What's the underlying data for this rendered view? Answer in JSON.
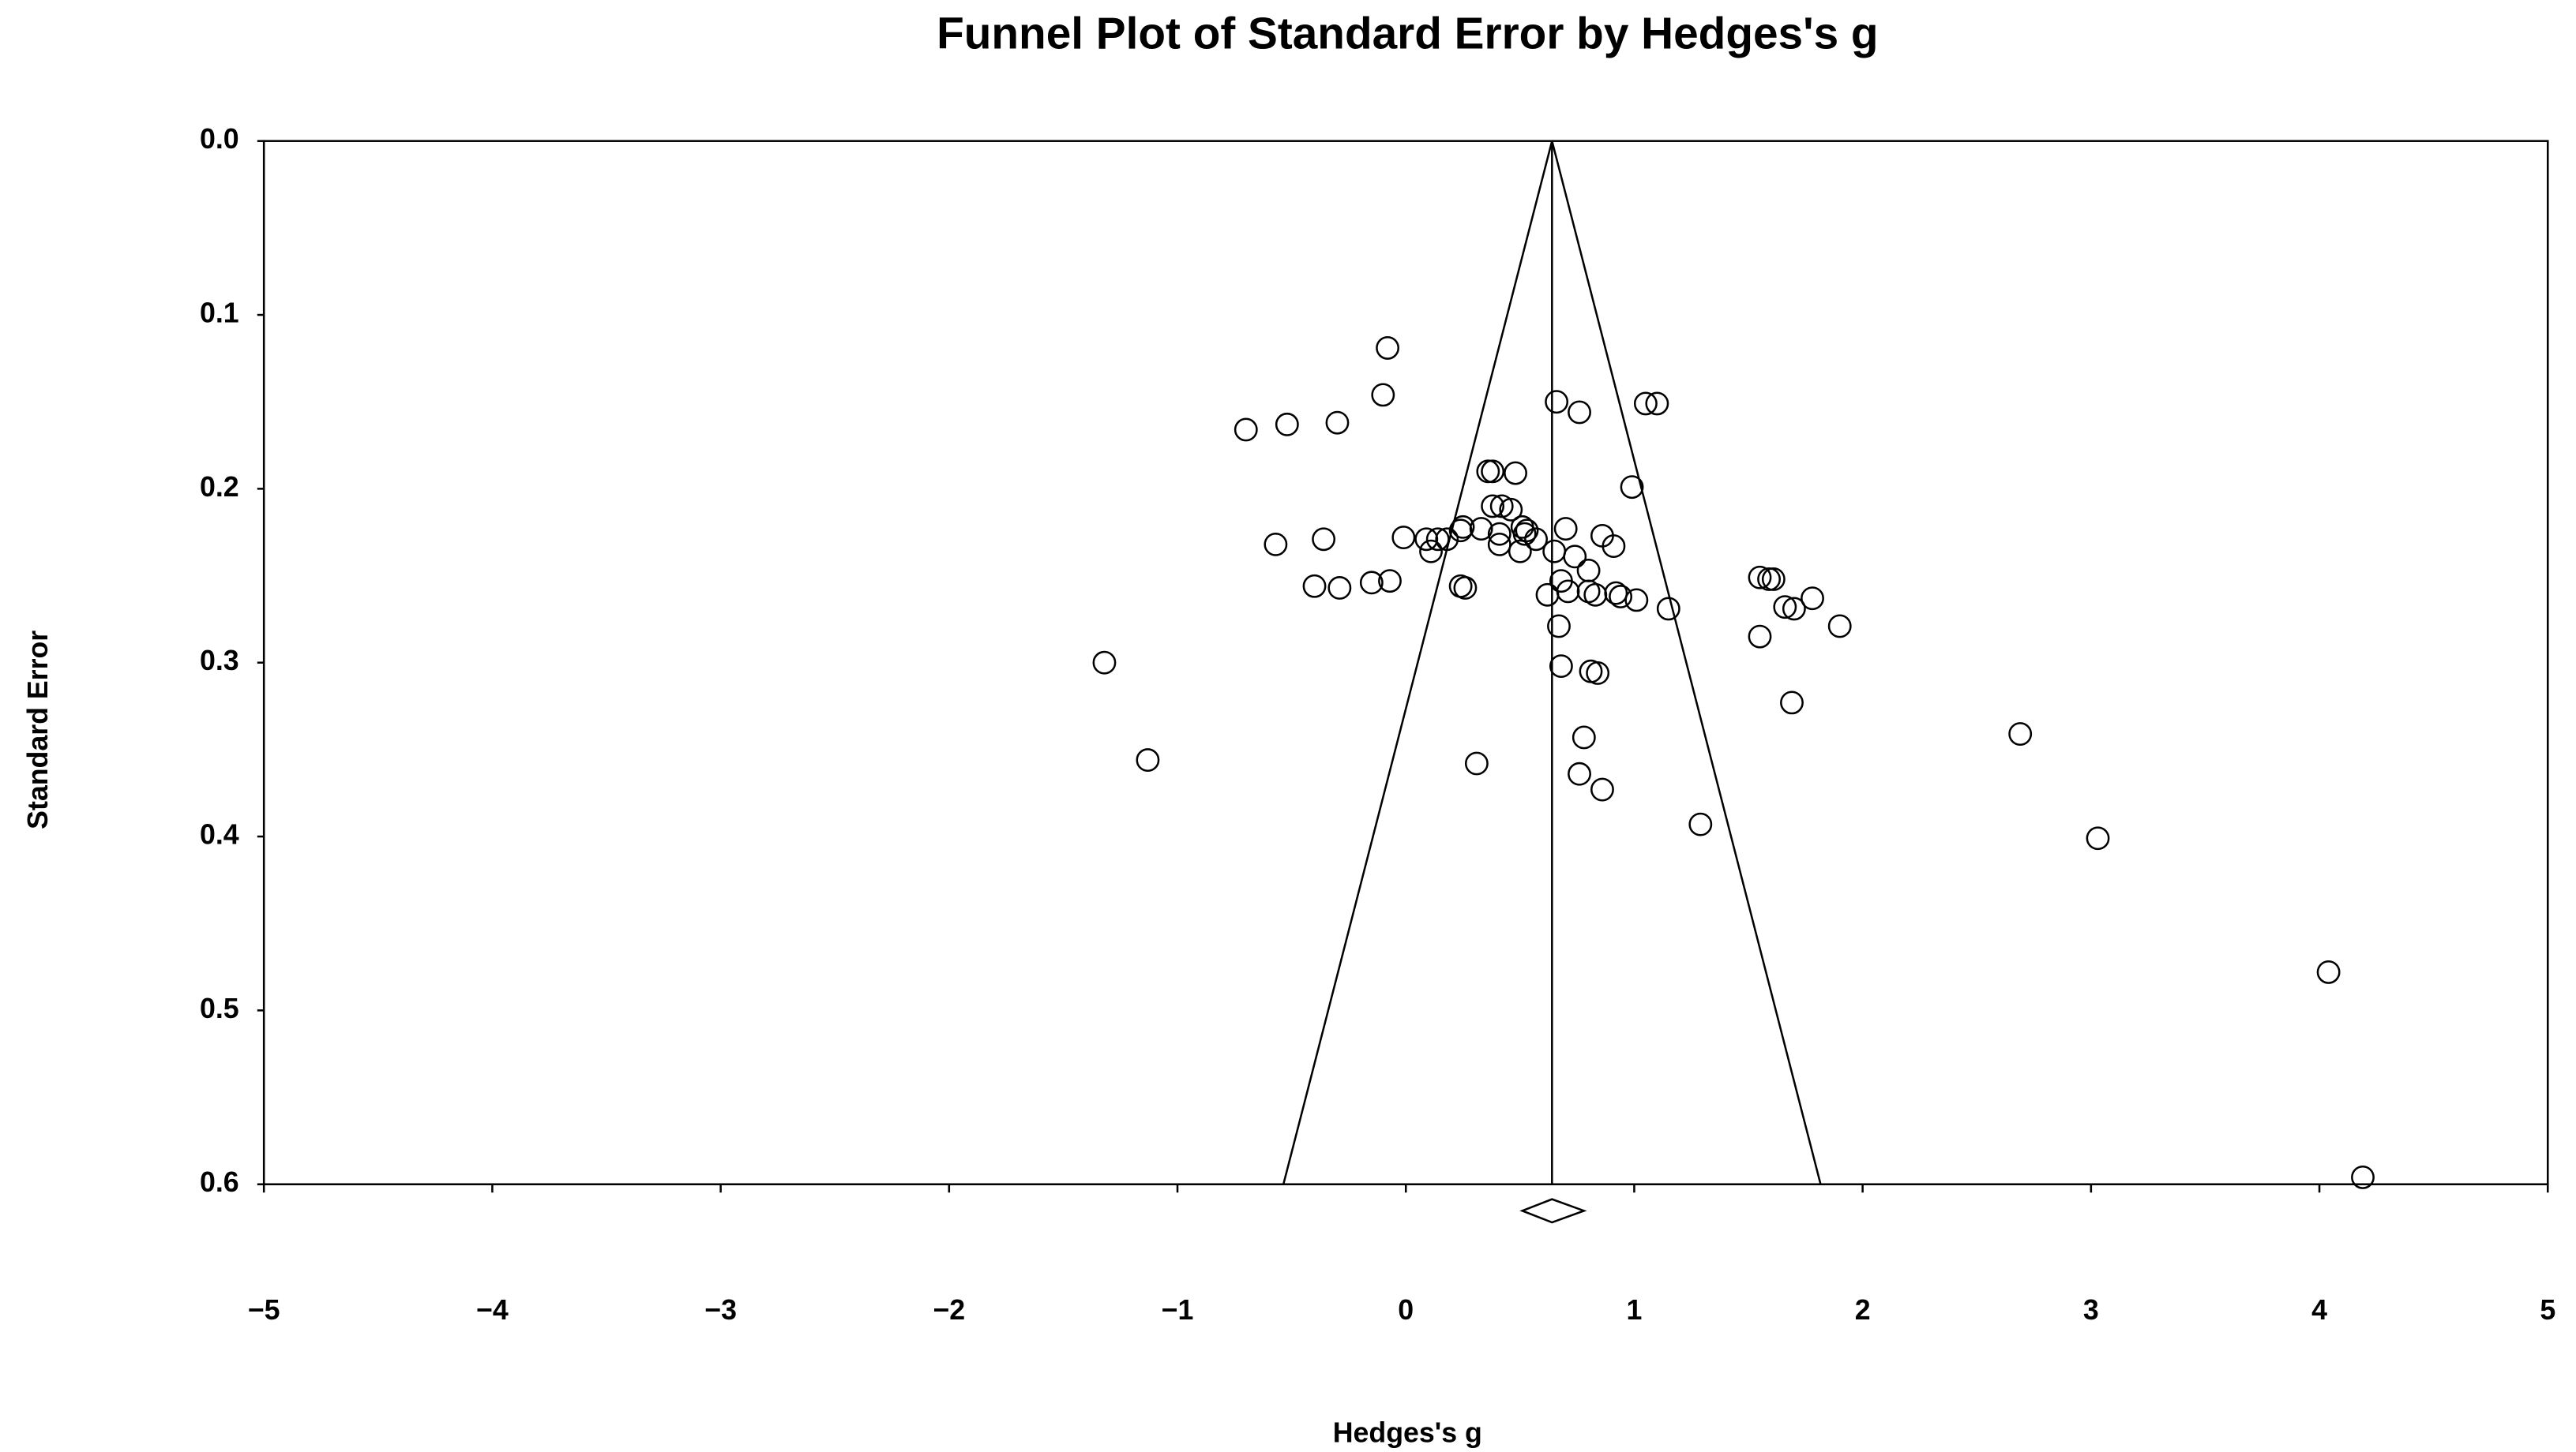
{
  "chart_data": {
    "type": "scatter",
    "title": "Funnel Plot of Standard Error by Hedges's g",
    "x_label": "Hedges's g",
    "y_label": "Standard Error",
    "x": [
      -0.08,
      -0.1,
      -0.7,
      -0.52,
      -0.3,
      0.66,
      0.76,
      1.05,
      1.1,
      0.36,
      0.38,
      0.48,
      0.99,
      0.38,
      0.42,
      0.46,
      0.51,
      0.53,
      0.52,
      0.33,
      0.25,
      0.24,
      0.41,
      0.41,
      0.18,
      0.14,
      0.09,
      0.11,
      -0.01,
      -0.57,
      -0.36,
      0.5,
      0.57,
      0.7,
      0.65,
      0.74,
      0.86,
      0.91,
      0.8,
      0.68,
      0.71,
      0.62,
      0.8,
      0.83,
      0.92,
      0.94,
      1.01,
      1.15,
      0.67,
      0.24,
      0.26,
      -0.07,
      -0.15,
      -0.29,
      -0.4,
      0.68,
      0.81,
      0.84,
      0.78,
      0.76,
      0.86,
      0.31,
      -1.32,
      -1.13,
      1.29,
      1.55,
      1.59,
      1.61,
      1.78,
      1.66,
      1.7,
      1.9,
      1.55,
      1.69,
      2.69,
      3.03,
      4.04,
      4.19
    ],
    "values": [
      0.119,
      0.146,
      0.166,
      0.163,
      0.162,
      0.15,
      0.156,
      0.151,
      0.151,
      0.19,
      0.19,
      0.191,
      0.199,
      0.21,
      0.21,
      0.212,
      0.222,
      0.224,
      0.226,
      0.223,
      0.222,
      0.224,
      0.226,
      0.232,
      0.229,
      0.229,
      0.229,
      0.236,
      0.228,
      0.232,
      0.229,
      0.236,
      0.229,
      0.223,
      0.236,
      0.239,
      0.227,
      0.233,
      0.247,
      0.253,
      0.259,
      0.261,
      0.259,
      0.261,
      0.26,
      0.262,
      0.264,
      0.269,
      0.279,
      0.256,
      0.257,
      0.253,
      0.254,
      0.257,
      0.256,
      0.302,
      0.305,
      0.306,
      0.343,
      0.364,
      0.373,
      0.358,
      0.3,
      0.356,
      0.393,
      0.251,
      0.252,
      0.252,
      0.263,
      0.268,
      0.269,
      0.279,
      0.285,
      0.323,
      0.341,
      0.401,
      0.478,
      0.596
    ],
    "summary": {
      "estimate": 0.64,
      "lower": 0.51,
      "upper": 0.78
    },
    "xlim": [
      -5,
      5
    ],
    "ylim": [
      0,
      0.6
    ],
    "y_inverted": true,
    "xticks": [
      {
        "value": -5,
        "label": "−5"
      },
      {
        "value": -4,
        "label": "−4"
      },
      {
        "value": -3,
        "label": "−3"
      },
      {
        "value": -2,
        "label": "−2"
      },
      {
        "value": -1,
        "label": "−1"
      },
      0,
      1,
      2,
      3,
      4,
      5
    ],
    "yticks": [
      {
        "value": 0,
        "label": "0.0"
      },
      0.1,
      0.2,
      0.3,
      0.4,
      0.5,
      0.6
    ],
    "color": "#000000"
  }
}
